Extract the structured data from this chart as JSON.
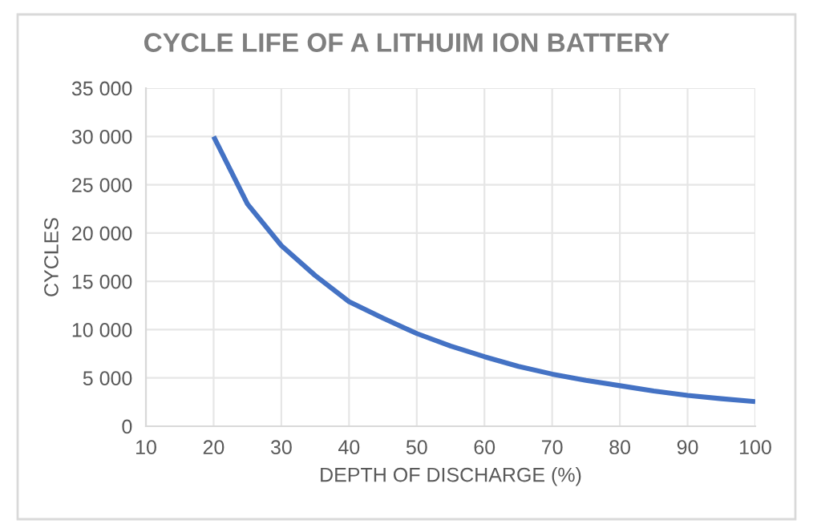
{
  "chart_data": {
    "type": "line",
    "title": "CYCLE LIFE OF A LITHUIM ION BATTERY",
    "xlabel": "DEPTH OF DISCHARGE (%)",
    "ylabel": "CYCLES",
    "x": [
      20,
      25,
      30,
      35,
      40,
      45,
      50,
      55,
      60,
      65,
      70,
      75,
      80,
      85,
      90,
      95,
      100
    ],
    "series": [
      {
        "color": "#4472c4",
        "values": [
          30000,
          23000,
          18700,
          15600,
          12900,
          11200,
          9600,
          8300,
          7200,
          6200,
          5400,
          4750,
          4200,
          3650,
          3200,
          2850,
          2550
        ]
      }
    ],
    "xlim": [
      10,
      100
    ],
    "xticks": [
      10,
      20,
      30,
      40,
      50,
      60,
      70,
      80,
      90,
      100
    ],
    "ylim": [
      0,
      35000
    ],
    "yticks": [
      {
        "value": 0,
        "label": "0"
      },
      {
        "value": 5000,
        "label": "5 000"
      },
      {
        "value": 10000,
        "label": "10 000"
      },
      {
        "value": 15000,
        "label": "15 000"
      },
      {
        "value": 20000,
        "label": "20 000"
      },
      {
        "value": 25000,
        "label": "25 000"
      },
      {
        "value": 30000,
        "label": "30 000"
      },
      {
        "value": 35000,
        "label": "35 000"
      }
    ],
    "grid": true,
    "marker": "none",
    "line_style": "solid"
  }
}
